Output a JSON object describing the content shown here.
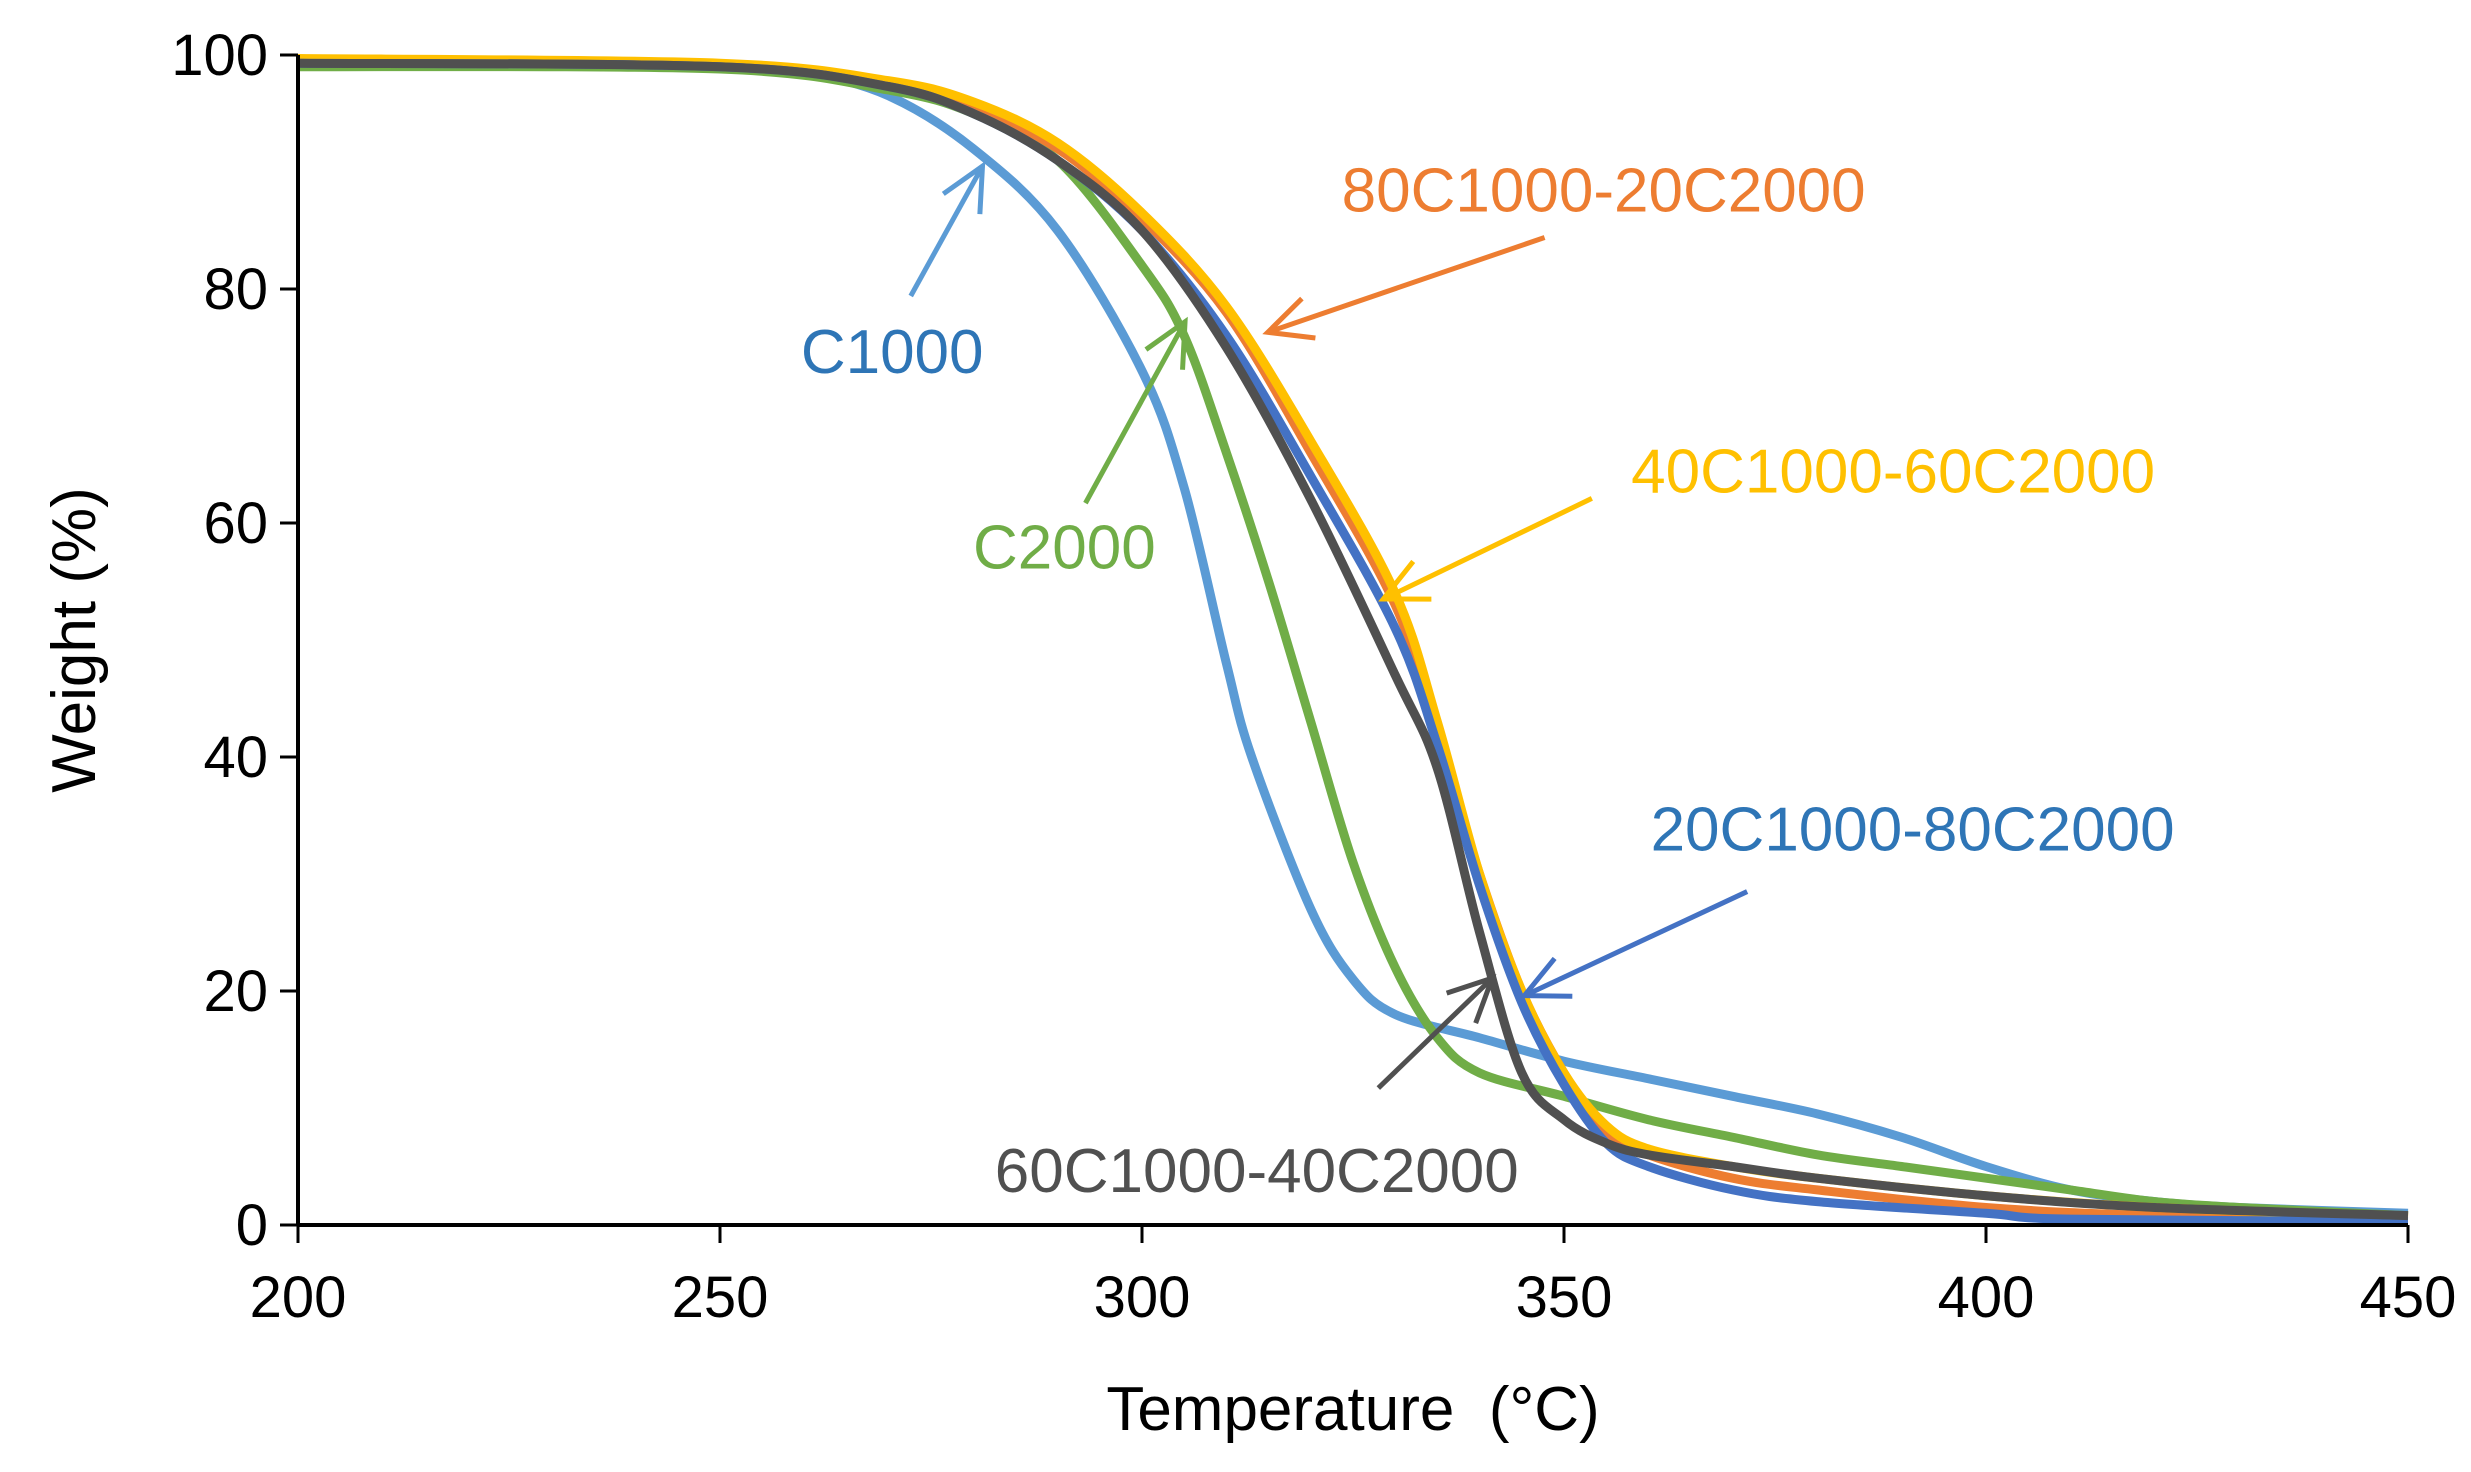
{
  "chart_data": {
    "type": "line",
    "title": "",
    "xlabel": "Temperature  (°C)",
    "ylabel": "Weight (%)",
    "xlim": [
      200,
      450
    ],
    "ylim": [
      0,
      100
    ],
    "xticks": [
      200,
      250,
      300,
      350,
      400,
      450
    ],
    "yticks": [
      0,
      20,
      40,
      60,
      80,
      100
    ],
    "grid": false,
    "series": [
      {
        "name": "C1000",
        "color": "#5B9BD5",
        "x": [
          200,
          250,
          260,
          270,
          280,
          290,
          300,
          305,
          310,
          313,
          320,
          325,
          330,
          340,
          350,
          360,
          370,
          380,
          390,
          400,
          410,
          420,
          430,
          450
        ],
        "y": [
          99.5,
          99,
          98.5,
          96.5,
          92,
          85,
          73,
          63,
          48,
          40,
          27,
          21,
          18,
          16,
          14,
          12.5,
          11,
          9.5,
          7.5,
          5,
          3,
          2,
          1.5,
          1
        ]
      },
      {
        "name": "C2000",
        "color": "#70AD47",
        "x": [
          200,
          250,
          270,
          280,
          290,
          300,
          305,
          310,
          315,
          320,
          325,
          330,
          335,
          340,
          350,
          360,
          370,
          380,
          390,
          400,
          410,
          420,
          430,
          450
        ],
        "y": [
          99,
          98.8,
          97,
          95,
          91,
          82,
          76,
          66,
          55,
          43,
          31,
          22,
          16,
          13,
          11,
          9,
          7.5,
          6,
          5,
          4,
          3,
          2,
          1.5,
          0.8
        ]
      },
      {
        "name": "80C1000-20C2000",
        "color": "#ED7D31",
        "x": [
          200,
          250,
          270,
          280,
          290,
          300,
          310,
          320,
          330,
          335,
          340,
          345,
          350,
          355,
          360,
          370,
          380,
          400,
          420,
          450
        ],
        "y": [
          99.5,
          99.2,
          97.5,
          95.5,
          92,
          86,
          78,
          66,
          53,
          42,
          30,
          20,
          13,
          8,
          6,
          4,
          3,
          1.5,
          0.8,
          0.5
        ]
      },
      {
        "name": "40C1000-60C2000",
        "color": "#FFC000",
        "x": [
          200,
          250,
          270,
          280,
          290,
          300,
          310,
          320,
          330,
          335,
          340,
          345,
          350,
          355,
          360,
          370,
          380,
          400,
          420,
          450
        ],
        "y": [
          99.7,
          99.3,
          97.8,
          96,
          92.5,
          86.5,
          78.5,
          67,
          54,
          43,
          30,
          20,
          13,
          8.5,
          6.5,
          5,
          4,
          2.5,
          1.5,
          0.7
        ]
      },
      {
        "name": "20C1000-80C2000",
        "color": "#4472C4",
        "x": [
          200,
          250,
          270,
          280,
          290,
          300,
          310,
          320,
          330,
          335,
          340,
          345,
          350,
          355,
          360,
          370,
          380,
          400,
          410,
          450
        ],
        "y": [
          99.3,
          99,
          97.3,
          95,
          91,
          85,
          76,
          64,
          51,
          41,
          29,
          19,
          12,
          7,
          5,
          3,
          2,
          1,
          0.5,
          0.3
        ]
      },
      {
        "name": "60C1000-40C2000",
        "color": "#505050",
        "x": [
          200,
          250,
          270,
          280,
          290,
          300,
          310,
          320,
          330,
          335,
          340,
          345,
          350,
          355,
          360,
          370,
          380,
          400,
          420,
          450
        ],
        "y": [
          99.3,
          99,
          97.3,
          95,
          91,
          85,
          75,
          62,
          47,
          39,
          25,
          13,
          9,
          7,
          6,
          5,
          4,
          2.5,
          1.5,
          0.8
        ]
      }
    ],
    "annotations": [
      {
        "text": "C1000",
        "color": "#2E75B6",
        "at": [
          270.4,
          74.7
        ],
        "arrow_from": [
          272.6,
          79.4
        ],
        "arrow_to": [
          281.1,
          90.5
        ],
        "arrow_color": "#5B9BD5"
      },
      {
        "text": "C2000",
        "color": "#70AD47",
        "at": [
          290.8,
          58
        ],
        "arrow_from": [
          293.3,
          61.7
        ],
        "arrow_to": [
          305.1,
          77.2
        ],
        "arrow_color": "#70AD47"
      },
      {
        "text": "80C1000-20C2000",
        "color": "#ED7D31",
        "at": [
          354.7,
          88.5
        ],
        "arrow_from": [
          347.7,
          84.4
        ],
        "arrow_to": [
          314.9,
          76.3
        ],
        "arrow_color": "#ED7D31"
      },
      {
        "text": "40C1000-60C2000",
        "color": "#FFC000",
        "at": [
          389,
          64.5
        ],
        "arrow_from": [
          353.3,
          62.1
        ],
        "arrow_to": [
          328.6,
          53.5
        ],
        "arrow_color": "#FFC000"
      },
      {
        "text": "20C1000-80C2000",
        "color": "#2E75B6",
        "at": [
          391.3,
          33.9
        ],
        "arrow_from": [
          371.7,
          28.5
        ],
        "arrow_to": [
          345.3,
          19.6
        ],
        "arrow_color": "#4472C4"
      },
      {
        "text": "60C1000-40C2000",
        "color": "#505050",
        "at": [
          313.6,
          4.7
        ],
        "arrow_from": [
          328,
          11.7
        ],
        "arrow_to": [
          341.5,
          21.1
        ],
        "arrow_color": "#505050"
      }
    ]
  }
}
